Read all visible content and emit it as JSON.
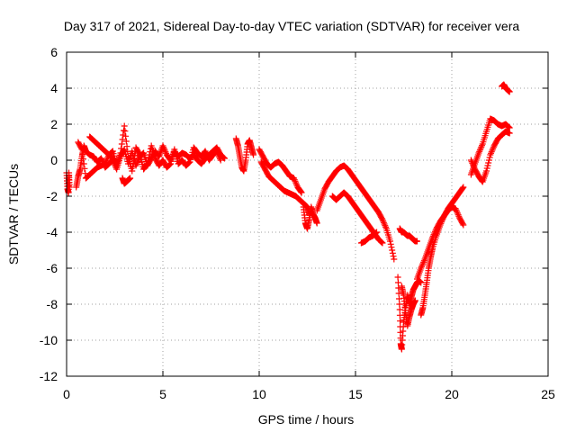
{
  "chart_data": {
    "type": "scatter",
    "title": "Day 317 of 2021, Sidereal Day-to-day VTEC variation (SDTVAR) for receiver vera",
    "xlabel": "GPS time / hours",
    "ylabel": "SDTVAR / TECUs",
    "xlim": [
      0,
      25
    ],
    "ylim": [
      -12,
      6
    ],
    "xticks": [
      0,
      5,
      10,
      15,
      20,
      25
    ],
    "yticks": [
      -12,
      -10,
      -8,
      -6,
      -4,
      -2,
      0,
      2,
      4,
      6
    ],
    "grid": true,
    "marker": "+",
    "color": "#ff0000",
    "series": [
      {
        "name": "SDTVAR",
        "segments": [
          {
            "x": [
              0.0,
              0.05,
              0.1,
              0.12,
              0.15
            ],
            "y": [
              -0.7,
              -1.6,
              -1.8,
              -0.7,
              -1.5
            ]
          },
          {
            "x": [
              0.5,
              0.6,
              0.7,
              0.8,
              0.9,
              1.0,
              1.2,
              1.4,
              1.6,
              1.8,
              2.0,
              2.2,
              2.4,
              2.6,
              2.8,
              3.0,
              3.2,
              3.4,
              3.6,
              3.8,
              4.0,
              4.2,
              4.4,
              4.6,
              4.8,
              5.0,
              5.2,
              5.4,
              5.6,
              5.8,
              6.0,
              6.2,
              6.4,
              6.6,
              6.8,
              7.0,
              7.2,
              7.4,
              7.6,
              7.8,
              8.0,
              8.2
            ],
            "y": [
              -1.5,
              -0.9,
              -0.5,
              0.2,
              0.8,
              0.5,
              0.3,
              0.2,
              -0.1,
              0.1,
              -0.4,
              -0.2,
              0.0,
              -0.5,
              0.2,
              0.6,
              -0.2,
              0.5,
              -0.3,
              0.2,
              0.4,
              -0.3,
              0.1,
              0.5,
              0.2,
              0.8,
              0.3,
              0.0,
              0.5,
              0.2,
              0.4,
              0.3,
              0.1,
              0.3,
              0.0,
              -0.2,
              0.1,
              0.3,
              0.5,
              0.7,
              0.3,
              0.1
            ]
          },
          {
            "x": [
              0.6,
              0.8,
              1.0,
              1.2,
              1.4,
              1.6,
              1.8,
              2.0,
              2.2,
              2.4,
              2.6,
              2.8,
              3.0,
              3.2,
              3.4,
              3.6,
              3.8,
              4.0,
              4.2,
              4.4,
              4.6,
              4.8,
              5.0,
              5.2,
              5.4,
              5.6,
              5.8,
              6.0,
              6.2,
              6.4,
              6.6,
              6.8,
              7.0,
              7.2,
              7.4,
              7.6,
              7.8,
              8.0
            ],
            "y": [
              1.0,
              0.6,
              -1.0,
              -0.8,
              -0.6,
              -0.4,
              -0.3,
              -0.2,
              0.3,
              0.5,
              -0.3,
              0.4,
              1.9,
              0.2,
              -0.6,
              0.7,
              0.3,
              -0.5,
              -0.2,
              0.8,
              0.1,
              -0.3,
              0.0,
              -0.4,
              -0.2,
              0.6,
              -0.2,
              0.0,
              -0.3,
              -0.1,
              0.7,
              0.4,
              0.2,
              0.5,
              0.0,
              0.3,
              0.5,
              0.0
            ]
          },
          {
            "x": [
              1.2,
              1.4,
              1.6,
              1.8,
              2.0,
              2.2,
              2.4,
              2.6
            ],
            "y": [
              1.3,
              1.1,
              0.9,
              0.7,
              0.5,
              0.3,
              0.1,
              -0.1
            ]
          },
          {
            "x": [
              2.9,
              3.0,
              3.1,
              3.2,
              3.3
            ],
            "y": [
              -1.0,
              -1.3,
              -1.2,
              -1.1,
              -1.0
            ]
          },
          {
            "x": [
              8.8,
              8.9,
              9.0,
              9.1,
              9.2,
              9.3,
              9.4,
              9.5,
              9.6,
              9.7
            ],
            "y": [
              1.2,
              0.8,
              0.2,
              -0.4,
              -0.6,
              0.0,
              0.9,
              1.1,
              0.7,
              0.3
            ]
          },
          {
            "x": [
              10.0,
              10.2,
              10.4,
              10.6,
              10.8,
              11.0,
              11.2,
              11.4,
              11.6,
              11.8,
              12.0,
              12.2
            ],
            "y": [
              0.6,
              0.2,
              -0.2,
              -0.4,
              -0.2,
              -0.1,
              -0.3,
              -0.6,
              -0.9,
              -1.0,
              -1.5,
              -1.8
            ]
          },
          {
            "x": [
              10.1,
              10.3,
              10.5,
              10.7,
              10.9,
              11.1,
              11.3,
              11.5,
              11.7,
              11.9,
              12.1,
              12.3,
              12.5,
              12.6
            ],
            "y": [
              -0.1,
              -0.5,
              -0.9,
              -1.1,
              -1.3,
              -1.5,
              -1.7,
              -1.8,
              -1.9,
              -2.0,
              -2.2,
              -2.4,
              -2.6,
              -3.0
            ]
          },
          {
            "x": [
              12.3,
              12.4,
              12.5,
              12.6,
              12.7,
              12.8,
              12.9,
              13.0
            ],
            "y": [
              -2.6,
              -3.5,
              -3.8,
              -3.3,
              -2.6,
              -3.0,
              -3.2,
              -3.5
            ]
          },
          {
            "x": [
              13.0,
              13.2,
              13.4,
              13.6,
              13.8,
              14.0,
              14.2,
              14.4,
              14.6,
              14.8,
              15.0,
              15.2,
              15.4,
              15.6,
              15.8,
              16.0,
              16.2,
              16.4,
              16.6,
              16.8,
              17.0
            ],
            "y": [
              -2.8,
              -2.2,
              -1.6,
              -1.2,
              -0.9,
              -0.6,
              -0.4,
              -0.3,
              -0.5,
              -0.8,
              -1.1,
              -1.4,
              -1.7,
              -2.0,
              -2.3,
              -2.6,
              -2.9,
              -3.3,
              -3.8,
              -4.5,
              -5.5
            ]
          },
          {
            "x": [
              13.8,
              14.0,
              14.2,
              14.4,
              14.6,
              14.8,
              15.0,
              15.2,
              15.4,
              15.6,
              15.8,
              16.0,
              16.2,
              16.4
            ],
            "y": [
              -2.0,
              -2.2,
              -2.0,
              -1.8,
              -2.0,
              -2.3,
              -2.6,
              -2.9,
              -3.2,
              -3.5,
              -3.8,
              -4.1,
              -4.4,
              -4.6
            ]
          },
          {
            "x": [
              15.3,
              15.5,
              15.7,
              15.9,
              16.1
            ],
            "y": [
              -4.6,
              -4.5,
              -4.3,
              -4.2,
              -4.0
            ]
          },
          {
            "x": [
              17.3,
              17.4,
              17.5,
              17.6,
              17.7,
              17.8,
              17.9,
              18.0,
              18.1,
              18.2
            ],
            "y": [
              -3.8,
              -4.0,
              -4.0,
              -4.1,
              -4.2,
              -4.2,
              -4.3,
              -4.4,
              -4.5,
              -4.5
            ]
          },
          {
            "x": [
              17.2,
              17.3,
              17.35,
              17.4,
              17.5,
              17.6,
              17.7,
              17.8,
              17.9,
              18.0,
              18.1,
              18.2,
              18.3,
              18.4
            ],
            "y": [
              -6.5,
              -8.3,
              -10.2,
              -10.5,
              -9.0,
              -8.2,
              -7.5,
              -8.0,
              -7.6,
              -7.2,
              -7.0,
              -6.8,
              -6.7,
              -6.8
            ]
          },
          {
            "x": [
              17.4,
              17.5,
              17.6,
              17.7,
              17.8,
              17.9,
              18.0,
              18.1
            ],
            "y": [
              -7.0,
              -7.5,
              -8.5,
              -9.2,
              -8.7,
              -8.3,
              -8.0,
              -7.8
            ]
          },
          {
            "x": [
              18.4,
              18.5,
              18.6,
              18.7,
              18.8,
              18.9,
              19.0,
              19.2,
              19.4,
              19.6,
              19.8,
              20.0,
              20.2,
              20.4,
              20.6
            ],
            "y": [
              -8.6,
              -8.2,
              -7.5,
              -6.8,
              -6.0,
              -5.4,
              -4.9,
              -4.2,
              -3.6,
              -3.1,
              -2.7,
              -2.4,
              -2.1,
              -1.8,
              -1.5
            ]
          },
          {
            "x": [
              18.2,
              18.4,
              18.6,
              18.8,
              19.0,
              19.2,
              19.4,
              19.6,
              19.8,
              20.0,
              20.2,
              20.4,
              20.6
            ],
            "y": [
              -6.6,
              -6.0,
              -5.5,
              -4.9,
              -4.3,
              -3.8,
              -3.4,
              -3.1,
              -2.8,
              -2.6,
              -2.7,
              -3.2,
              -3.6
            ]
          },
          {
            "x": [
              21.0,
              21.2,
              21.4,
              21.6,
              21.8,
              22.0,
              22.2,
              22.4,
              22.6,
              22.8,
              23.0
            ],
            "y": [
              0.0,
              -0.5,
              -0.9,
              -1.2,
              -0.6,
              0.3,
              0.8,
              1.2,
              1.4,
              1.6,
              1.5
            ]
          },
          {
            "x": [
              21.0,
              21.2,
              21.4,
              21.6,
              21.8,
              22.0,
              22.2,
              22.4,
              22.6,
              22.8,
              23.0
            ],
            "y": [
              -0.8,
              -0.2,
              0.4,
              0.9,
              1.6,
              2.3,
              2.2,
              2.0,
              1.9,
              2.0,
              1.8
            ]
          },
          {
            "x": [
              22.6,
              22.7,
              22.8,
              22.9,
              23.0
            ],
            "y": [
              4.1,
              4.2,
              4.0,
              3.9,
              3.8
            ]
          }
        ]
      }
    ]
  }
}
